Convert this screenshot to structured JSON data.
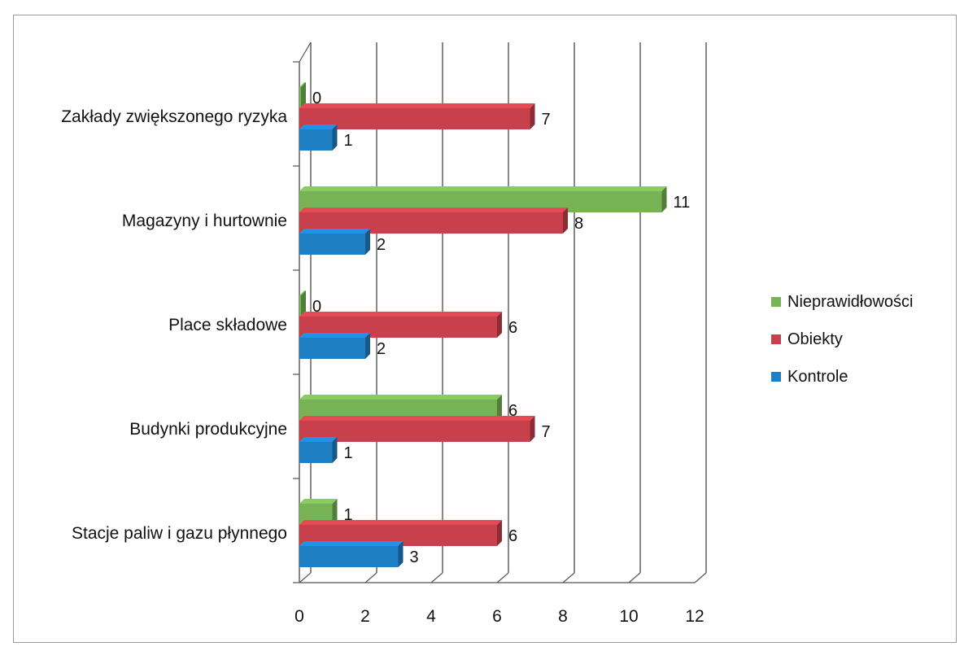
{
  "chart_data": {
    "type": "bar",
    "orientation": "horizontal",
    "categories": [
      "Zakłady zwiększonego ryzyka",
      "Magazyny i hurtownie",
      "Place składowe",
      "Budynki produkcyjne",
      "Stacje paliw i gazu płynnego"
    ],
    "series": [
      {
        "name": "Nieprawidłowości",
        "color": "#77b255",
        "values": [
          0,
          11,
          0,
          6,
          1
        ]
      },
      {
        "name": "Obiekty",
        "color": "#c8404b",
        "values": [
          7,
          8,
          6,
          7,
          6
        ]
      },
      {
        "name": "Kontrole",
        "color": "#1f7fc4",
        "values": [
          1,
          2,
          2,
          1,
          3
        ]
      }
    ],
    "x_ticks": [
      "0",
      "2",
      "4",
      "6",
      "8",
      "10",
      "12"
    ],
    "xlim": [
      0,
      12
    ],
    "grid": true,
    "legend_position": "right",
    "data_labels": true,
    "style": "3d"
  }
}
